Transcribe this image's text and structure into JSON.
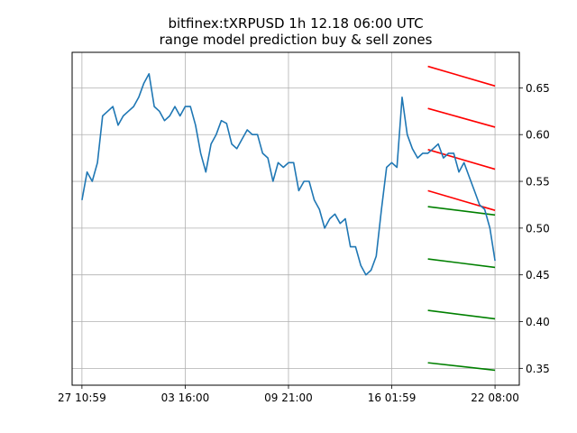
{
  "chart_data": {
    "type": "line",
    "title": "bitfinex:tXRPUSD 1h 12.18 06:00 UTC",
    "subtitle": "range model prediction buy & sell zones",
    "x_ticks": [
      "27 10:59",
      "03 16:00",
      "09 21:00",
      "16 01:59",
      "22 08:00"
    ],
    "y_ticks": [
      "0.35",
      "0.40",
      "0.45",
      "0.50",
      "0.55",
      "0.60",
      "0.65"
    ],
    "y_axis_side": "right",
    "grid": true,
    "xlim": [
      -0.095,
      4.235
    ],
    "ylim": [
      0.332,
      0.688
    ],
    "series": [
      {
        "color": "#1f77b4",
        "x": [
          0.0,
          0.05,
          0.1,
          0.15,
          0.2,
          0.25,
          0.3,
          0.35,
          0.4,
          0.45,
          0.5,
          0.55,
          0.6,
          0.65,
          0.7,
          0.75,
          0.8,
          0.85,
          0.9,
          0.95,
          1.0,
          1.05,
          1.1,
          1.15,
          1.2,
          1.25,
          1.3,
          1.35,
          1.4,
          1.45,
          1.5,
          1.55,
          1.6,
          1.65,
          1.7,
          1.75,
          1.8,
          1.85,
          1.9,
          1.95,
          2.0,
          2.05,
          2.1,
          2.15,
          2.2,
          2.25,
          2.3,
          2.35,
          2.4,
          2.45,
          2.5,
          2.55,
          2.6,
          2.65,
          2.7,
          2.75,
          2.8,
          2.85,
          2.9,
          2.95,
          3.0,
          3.05,
          3.1,
          3.15,
          3.2,
          3.25,
          3.3,
          3.35,
          3.4,
          3.45,
          3.5,
          3.55,
          3.6,
          3.65,
          3.7,
          3.75,
          3.8,
          3.85,
          3.9,
          3.95,
          4.0
        ],
        "values": [
          0.53,
          0.56,
          0.55,
          0.57,
          0.62,
          0.625,
          0.63,
          0.61,
          0.62,
          0.625,
          0.63,
          0.64,
          0.655,
          0.665,
          0.63,
          0.625,
          0.615,
          0.62,
          0.63,
          0.62,
          0.63,
          0.63,
          0.61,
          0.58,
          0.56,
          0.59,
          0.6,
          0.615,
          0.612,
          0.59,
          0.585,
          0.595,
          0.605,
          0.6,
          0.6,
          0.58,
          0.575,
          0.55,
          0.57,
          0.565,
          0.57,
          0.57,
          0.54,
          0.55,
          0.55,
          0.53,
          0.52,
          0.5,
          0.51,
          0.515,
          0.505,
          0.51,
          0.48,
          0.48,
          0.46,
          0.45,
          0.455,
          0.47,
          0.52,
          0.565,
          0.57,
          0.565,
          0.64,
          0.6,
          0.585,
          0.575,
          0.58,
          0.58,
          0.585,
          0.59,
          0.575,
          0.58,
          0.58,
          0.56,
          0.57,
          0.555,
          0.54,
          0.525,
          0.52,
          0.5,
          0.465
        ]
      }
    ],
    "zones": {
      "sell_color": "#ff0000",
      "buy_color": "#008000",
      "x_start": 3.35,
      "x_end": 4.0,
      "sell": [
        {
          "start": 0.673,
          "end": 0.652
        },
        {
          "start": 0.628,
          "end": 0.608
        },
        {
          "start": 0.584,
          "end": 0.563
        },
        {
          "start": 0.54,
          "end": 0.519
        }
      ],
      "buy": [
        {
          "start": 0.523,
          "end": 0.514
        },
        {
          "start": 0.467,
          "end": 0.458
        },
        {
          "start": 0.412,
          "end": 0.403
        },
        {
          "start": 0.356,
          "end": 0.348
        }
      ]
    }
  }
}
